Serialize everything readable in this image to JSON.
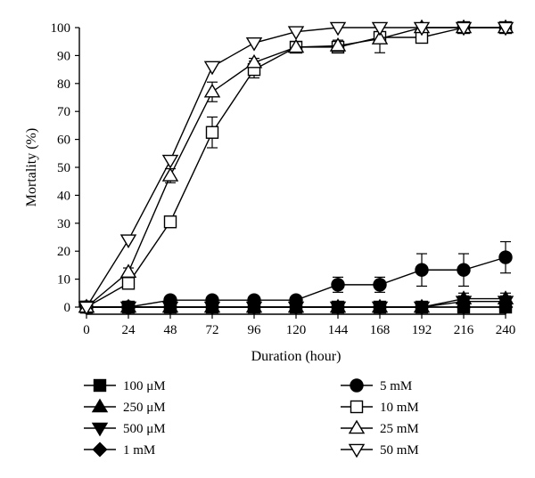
{
  "chart_data": {
    "type": "line",
    "title": "",
    "xlabel": "Duration (hour)",
    "ylabel": "Mortality (%)",
    "x": [
      0,
      24,
      48,
      72,
      96,
      120,
      144,
      168,
      192,
      216,
      240
    ],
    "xlim": [
      0,
      240
    ],
    "ylim": [
      0,
      100
    ],
    "xticks": [
      0,
      24,
      48,
      72,
      96,
      120,
      144,
      168,
      192,
      216,
      240
    ],
    "yticks": [
      0,
      10,
      20,
      30,
      40,
      50,
      60,
      70,
      80,
      90,
      100
    ],
    "grid": false,
    "legend_position": "bottom",
    "series": [
      {
        "name": "100 μM",
        "marker": "square-filled",
        "values": [
          0,
          0,
          0,
          0,
          0,
          0,
          0,
          0,
          0,
          0,
          0
        ],
        "error": [
          0,
          0,
          0,
          0,
          0,
          0,
          0,
          0,
          0,
          0,
          0
        ]
      },
      {
        "name": "250 μM",
        "marker": "triangle-up-filled",
        "values": [
          0,
          0,
          0,
          0,
          0,
          0,
          0,
          0,
          0,
          3,
          3
        ],
        "error": [
          0,
          0,
          0,
          0,
          0,
          0,
          0,
          0,
          0,
          2,
          2
        ]
      },
      {
        "name": "500 μM",
        "marker": "triangle-down-filled",
        "values": [
          0,
          0,
          0,
          0,
          0,
          0,
          0,
          0,
          0,
          2,
          2
        ],
        "error": [
          0,
          0,
          0,
          0,
          0,
          0,
          0,
          0,
          0,
          2,
          2
        ]
      },
      {
        "name": "1 mM",
        "marker": "diamond-filled",
        "values": [
          0,
          0,
          0,
          0,
          0,
          0,
          0,
          0,
          0,
          0,
          0
        ],
        "error": [
          0,
          0,
          0,
          0,
          0,
          0,
          0,
          0,
          0,
          0,
          0
        ]
      },
      {
        "name": "5 mM",
        "marker": "circle-filled",
        "values": [
          0,
          0,
          2.5,
          2.5,
          2.5,
          2.5,
          8,
          8,
          13.3,
          13.3,
          17.8
        ],
        "error": [
          0,
          0,
          0,
          0,
          0,
          0,
          2.7,
          2.7,
          5.8,
          5.8,
          5.6
        ]
      },
      {
        "name": "10 mM",
        "marker": "square-open",
        "values": [
          0,
          8.5,
          30.5,
          62.5,
          85,
          93,
          93,
          96.5,
          96.5,
          100,
          100
        ],
        "error": [
          0,
          2,
          2,
          5.5,
          3,
          2,
          2,
          2,
          2,
          0,
          0
        ]
      },
      {
        "name": "25 mM",
        "marker": "triangle-up-open",
        "values": [
          0,
          12.5,
          47,
          77,
          87.5,
          93,
          93.5,
          96,
          100,
          100,
          100
        ],
        "error": [
          0,
          1.5,
          2.5,
          3.5,
          1.5,
          2,
          2,
          5,
          0,
          0,
          0
        ]
      },
      {
        "name": "50 mM",
        "marker": "triangle-down-open",
        "values": [
          0,
          24,
          52.5,
          86,
          94.5,
          98.5,
          100,
          100,
          100,
          100,
          100
        ],
        "error": [
          0,
          0,
          0,
          0,
          0,
          0,
          0,
          0,
          0,
          0,
          0
        ]
      }
    ]
  }
}
